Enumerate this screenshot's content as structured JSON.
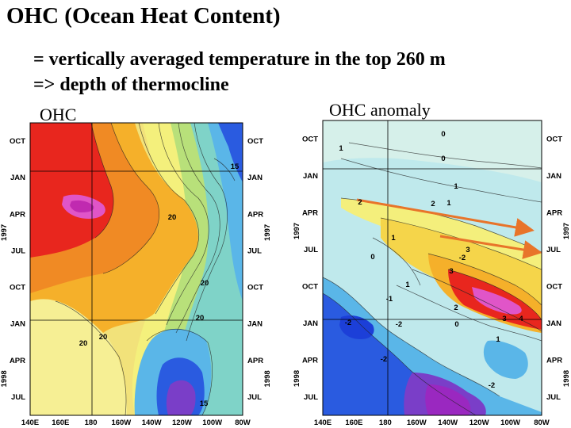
{
  "slide": {
    "title": "OHC (Ocean Heat Content)",
    "line1": "= vertically averaged temperature in the top 260 m",
    "line2": "=> depth of thermocline"
  },
  "chart_data": [
    {
      "type": "heatmap",
      "caption": "OHC",
      "x_ticks": [
        "140E",
        "160E",
        "180",
        "160W",
        "140W",
        "120W",
        "100W",
        "80W"
      ],
      "time_ticks": [
        "OCT",
        "JAN",
        "APR",
        "JUL",
        "OCT",
        "JAN",
        "APR",
        "JUL"
      ],
      "year_labels": [
        "1997",
        "1998"
      ],
      "contour_labels": [
        "15",
        "20",
        "20",
        "20",
        "20",
        "20",
        "15"
      ],
      "colors": {
        "warm": "#e8261e",
        "hot": "#e055c8",
        "cool": "#1c3fd8",
        "mid": "#f5f08a"
      }
    },
    {
      "type": "heatmap",
      "caption": "OHC anomaly",
      "x_ticks": [
        "140E",
        "160E",
        "180",
        "160W",
        "140W",
        "120W",
        "100W",
        "80W"
      ],
      "time_ticks": [
        "OCT",
        "JAN",
        "APR",
        "JUL",
        "OCT",
        "JAN",
        "APR",
        "JUL"
      ],
      "year_labels": [
        "1997",
        "1998"
      ],
      "contour_labels": [
        "1",
        "0",
        "0",
        "1",
        "2",
        "2",
        "1",
        "1",
        "0",
        "-2",
        "3",
        "3",
        "1",
        "-1",
        "2",
        "3",
        "4",
        "-2",
        "-2",
        "0",
        "1",
        "-2",
        "-2"
      ],
      "colors": {
        "positive": "#e8261e",
        "extreme": "#e055c8",
        "negative": "#1c3fd8",
        "arrow": "#e8742a"
      }
    }
  ]
}
